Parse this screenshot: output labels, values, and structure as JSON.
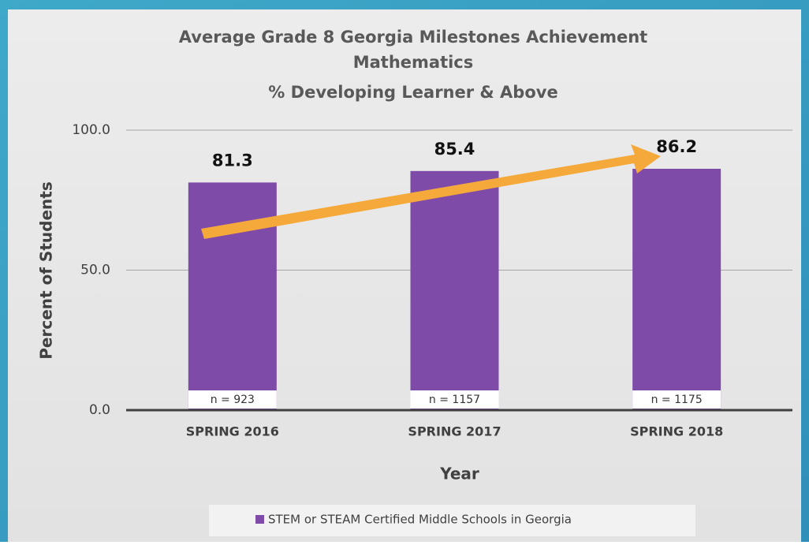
{
  "chart_data": {
    "type": "bar",
    "title": [
      "Average Grade 8 Georgia Milestones Achievement",
      "Mathematics",
      "% Developing Learner & Above"
    ],
    "x_label": "Year",
    "y_label": "Percent of Students",
    "categories": [
      "SPRING 2016",
      "SPRING 2017",
      "SPRING 2018"
    ],
    "series": [
      {
        "name": "STEM or STEAM Certified Middle Schools in Georgia",
        "color": "#7f4ba9",
        "values": [
          81.3,
          85.4,
          86.2
        ]
      }
    ],
    "annotations": [
      "n = 923",
      "n = 1157",
      "n = 1175"
    ],
    "ylim": [
      0,
      100
    ],
    "yticks": [
      {
        "value": 0,
        "label": "0.0"
      },
      {
        "value": 50,
        "label": "50.0"
      },
      {
        "value": 100,
        "label": "100.0"
      }
    ],
    "grid": true,
    "legend": "bottom"
  }
}
